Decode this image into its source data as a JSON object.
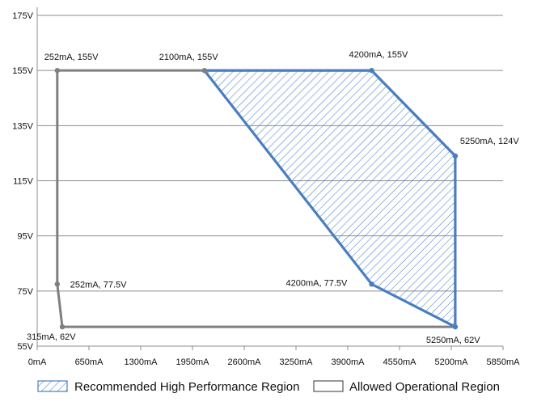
{
  "chart_data": {
    "type": "area",
    "x_unit": "mA",
    "y_unit": "V",
    "xlim": [
      0,
      5850
    ],
    "ylim": [
      55,
      175
    ],
    "x_ticks": [
      0,
      650,
      1300,
      1950,
      2600,
      3250,
      3900,
      4550,
      5200,
      5850
    ],
    "x_tick_labels": [
      "0mA",
      "650mA",
      "1300mA",
      "1950mA",
      "2600mA",
      "3250mA",
      "3900mA",
      "4550mA",
      "5200mA",
      "5850mA"
    ],
    "y_ticks": [
      55,
      75,
      95,
      115,
      135,
      155,
      175
    ],
    "y_tick_labels": [
      "55V",
      "75V",
      "95V",
      "115V",
      "135V",
      "155V",
      "175V"
    ],
    "grid": "horizontal",
    "legend_position": "bottom",
    "series": [
      {
        "name": "Recommended High Performance Region",
        "style": "hatched-fill",
        "color": "#4a7ebf",
        "points": [
          {
            "x": 2100,
            "y": 155,
            "label": "2100mA, 155V"
          },
          {
            "x": 4200,
            "y": 155,
            "label": "4200mA, 155V"
          },
          {
            "x": 5250,
            "y": 124,
            "label": "5250mA, 124V"
          },
          {
            "x": 5250,
            "y": 62,
            "label": "5250mA, 62V"
          },
          {
            "x": 4200,
            "y": 77.5,
            "label": "4200mA, 77.5V"
          }
        ]
      },
      {
        "name": "Allowed Operational Region",
        "style": "outline",
        "color": "#7f7f7f",
        "points": [
          {
            "x": 252,
            "y": 155,
            "label": "252mA, 155V"
          },
          {
            "x": 2100,
            "y": 155,
            "label": ""
          },
          {
            "x": 4200,
            "y": 155,
            "label": ""
          },
          {
            "x": 5250,
            "y": 124,
            "label": ""
          },
          {
            "x": 5250,
            "y": 62,
            "label": ""
          },
          {
            "x": 315,
            "y": 62,
            "label": "315mA, 62V"
          },
          {
            "x": 252,
            "y": 77.5,
            "label": "252mA, 77.5V"
          }
        ]
      }
    ]
  }
}
